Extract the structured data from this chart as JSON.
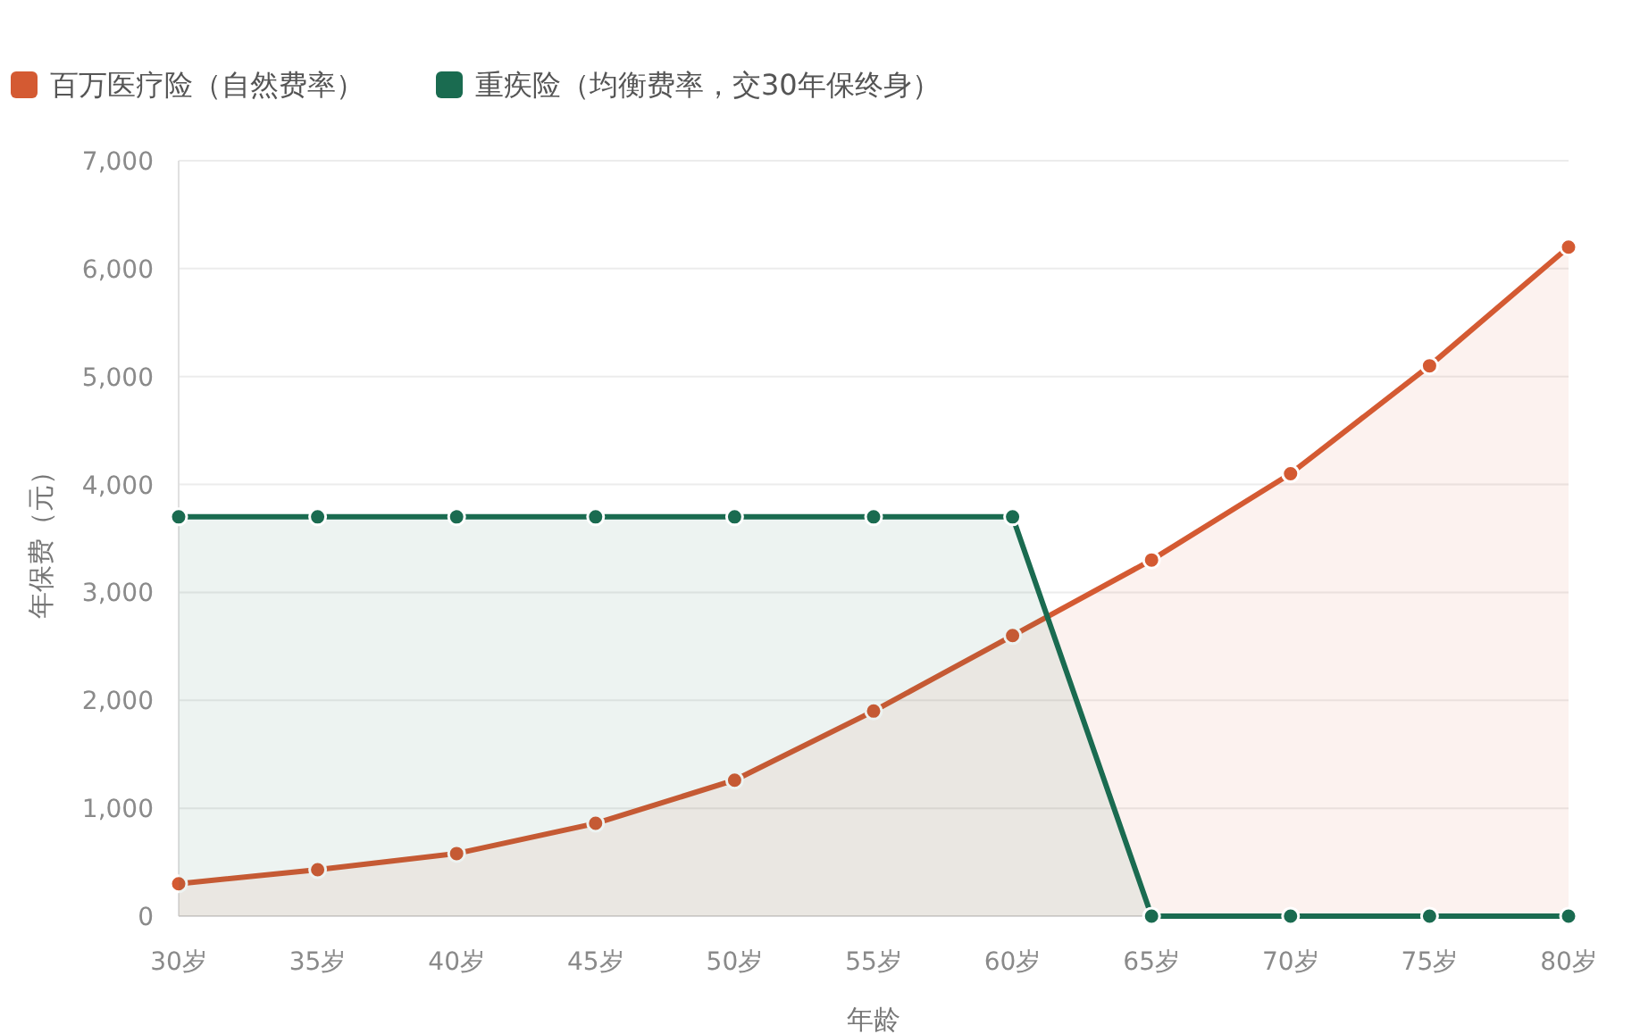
{
  "chart_data": {
    "type": "area",
    "xlabel": "年龄",
    "ylabel": "年保费（元）",
    "categories": [
      "30岁",
      "35岁",
      "40岁",
      "45岁",
      "50岁",
      "55岁",
      "60岁",
      "65岁",
      "70岁",
      "75岁",
      "80岁"
    ],
    "series": [
      {
        "name": "百万医疗险（自然费率）",
        "color": "#d45a32",
        "values": [
          300,
          430,
          580,
          860,
          1260,
          1900,
          2600,
          3300,
          4100,
          5100,
          6200
        ]
      },
      {
        "name": "重疾险（均衡费率，交30年保终身）",
        "color": "#1a6b50",
        "values": [
          3700,
          3700,
          3700,
          3700,
          3700,
          3700,
          3700,
          0,
          0,
          0,
          0
        ]
      }
    ],
    "ylim": [
      0,
      7000
    ],
    "yticks": [
      {
        "value": 0,
        "label": "0"
      },
      {
        "value": 1000,
        "label": "1,000"
      },
      {
        "value": 2000,
        "label": "2,000"
      },
      {
        "value": 3000,
        "label": "3,000"
      },
      {
        "value": 4000,
        "label": "4,000"
      },
      {
        "value": 5000,
        "label": "5,000"
      },
      {
        "value": 6000,
        "label": "6,000"
      },
      {
        "value": 7000,
        "label": "7,000"
      }
    ],
    "grid": "y",
    "legend": "top left",
    "marker": "circle",
    "line_style": "solid"
  }
}
